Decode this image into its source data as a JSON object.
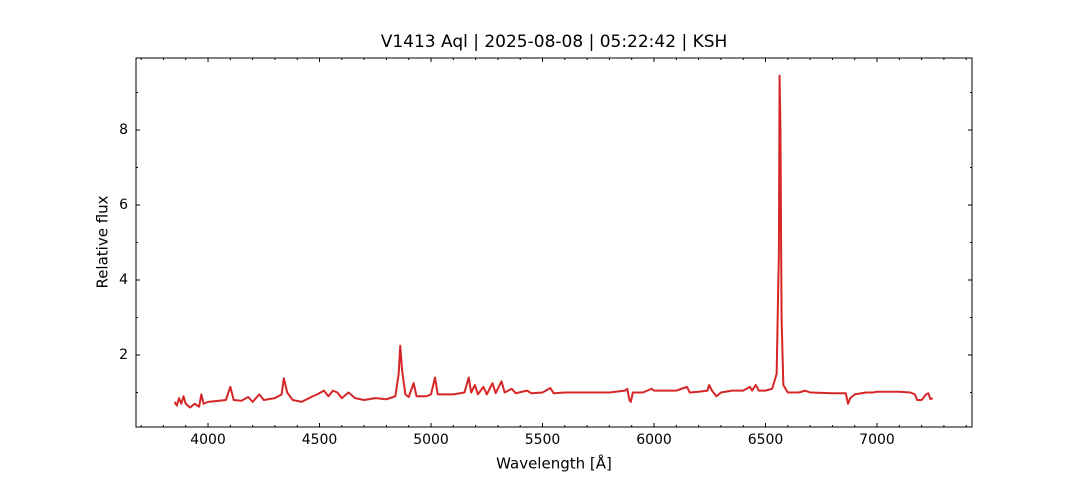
{
  "chart_data": {
    "type": "line",
    "title": "V1413 Aql | 2025-08-08 | 05:22:42 | KSH",
    "xlabel": "Wavelength [Å]",
    "ylabel": "Relative flux",
    "xlim": [
      3677,
      7426
    ],
    "ylim": [
      0.08,
      9.92
    ],
    "xticks": [
      4000,
      4500,
      5000,
      5500,
      6000,
      6500,
      7000
    ],
    "yticks": [
      2,
      4,
      6,
      8
    ],
    "xticks_minor": [
      3700,
      3800,
      3900,
      4100,
      4200,
      4300,
      4400,
      4600,
      4700,
      4800,
      4900,
      5100,
      5200,
      5300,
      5400,
      5600,
      5700,
      5800,
      5900,
      6100,
      6200,
      6300,
      6400,
      6600,
      6700,
      6800,
      6900,
      7100,
      7200,
      7300,
      7400
    ],
    "yticks_minor": [
      1,
      3,
      5,
      7,
      9
    ],
    "series": [
      {
        "color": "#d62728",
        "x": [
          3850,
          3860,
          3870,
          3880,
          3890,
          3900,
          3920,
          3940,
          3960,
          3970,
          3980,
          4000,
          4050,
          4080,
          4100,
          4115,
          4150,
          4180,
          4200,
          4230,
          4250,
          4300,
          4330,
          4340,
          4355,
          4380,
          4420,
          4470,
          4490,
          4520,
          4540,
          4560,
          4580,
          4600,
          4630,
          4660,
          4700,
          4750,
          4800,
          4840,
          4855,
          4862,
          4870,
          4885,
          4900,
          4922,
          4935,
          4980,
          5000,
          5018,
          5030,
          5100,
          5150,
          5169,
          5180,
          5197,
          5210,
          5235,
          5250,
          5276,
          5290,
          5316,
          5330,
          5362,
          5380,
          5430,
          5450,
          5500,
          5535,
          5550,
          5600,
          5700,
          5800,
          5870,
          5880,
          5890,
          5896,
          5905,
          5950,
          5990,
          6000,
          6100,
          6148,
          6160,
          6200,
          6240,
          6247,
          6260,
          6280,
          6300,
          6350,
          6400,
          6430,
          6440,
          6456,
          6470,
          6500,
          6530,
          6550,
          6556,
          6560,
          6563,
          6567,
          6572,
          6580,
          6600,
          6650,
          6678,
          6700,
          6800,
          6860,
          6870,
          6880,
          6900,
          6950,
          6980,
          7000,
          7100,
          7150,
          7170,
          7180,
          7200,
          7220,
          7230,
          7240,
          7250
        ],
        "values": [
          0.75,
          0.65,
          0.85,
          0.7,
          0.9,
          0.7,
          0.6,
          0.7,
          0.62,
          0.95,
          0.7,
          0.75,
          0.78,
          0.8,
          1.15,
          0.8,
          0.78,
          0.88,
          0.75,
          0.95,
          0.8,
          0.85,
          0.95,
          1.38,
          1.0,
          0.8,
          0.75,
          0.9,
          0.95,
          1.05,
          0.9,
          1.05,
          1.0,
          0.85,
          1.0,
          0.85,
          0.8,
          0.85,
          0.82,
          0.9,
          1.5,
          2.25,
          1.6,
          0.95,
          0.88,
          1.25,
          0.9,
          0.9,
          0.95,
          1.4,
          0.95,
          0.95,
          1.0,
          1.4,
          1.0,
          1.2,
          0.95,
          1.15,
          0.95,
          1.25,
          0.98,
          1.3,
          1.0,
          1.1,
          0.98,
          1.05,
          0.98,
          1.0,
          1.12,
          0.98,
          1.0,
          1.0,
          1.0,
          1.05,
          1.1,
          0.8,
          0.75,
          1.0,
          1.0,
          1.1,
          1.05,
          1.05,
          1.15,
          1.0,
          1.02,
          1.05,
          1.2,
          1.05,
          0.9,
          1.0,
          1.05,
          1.05,
          1.15,
          1.05,
          1.2,
          1.05,
          1.05,
          1.1,
          1.5,
          3.5,
          4.7,
          9.45,
          8.0,
          3.0,
          1.2,
          1.0,
          1.0,
          1.05,
          1.0,
          0.98,
          0.98,
          0.7,
          0.85,
          0.95,
          1.0,
          1.0,
          1.02,
          1.02,
          1.0,
          0.95,
          0.8,
          0.8,
          0.95,
          0.98,
          0.82,
          0.85
        ]
      }
    ]
  }
}
